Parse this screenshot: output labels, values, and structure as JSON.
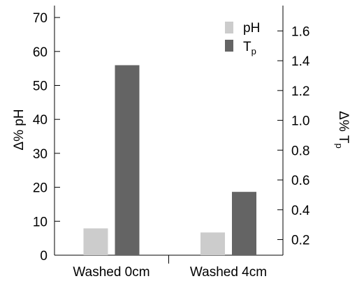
{
  "chart_data": {
    "type": "bar",
    "categories": [
      "Washed 0cm",
      "Washed 4cm"
    ],
    "series": [
      {
        "name": "pH",
        "axis": "left",
        "color": "#cccccc",
        "values": [
          7.9,
          6.7
        ]
      },
      {
        "name": "T",
        "name_subscript": "p",
        "axis": "right",
        "color": "#646464",
        "values": [
          1.37,
          0.52
        ]
      }
    ],
    "left_axis": {
      "label": "Δ% pH",
      "ylim": [
        0,
        73.5
      ],
      "ticks": [
        0,
        10,
        20,
        30,
        40,
        50,
        60,
        70
      ]
    },
    "right_axis": {
      "label": "Δ% T",
      "label_subscript": "p",
      "ylim": [
        0.095,
        1.77
      ],
      "ticks": [
        "0.2",
        "0.4",
        "0.6",
        "0.8",
        "1.0",
        "1.2",
        "1.4",
        "1.6"
      ]
    },
    "legend": {
      "placement": "top-right",
      "entries": [
        {
          "label": "pH",
          "color": "#cccccc"
        },
        {
          "label": "T",
          "subscript": "p",
          "color": "#646464"
        }
      ]
    },
    "grid": false
  }
}
